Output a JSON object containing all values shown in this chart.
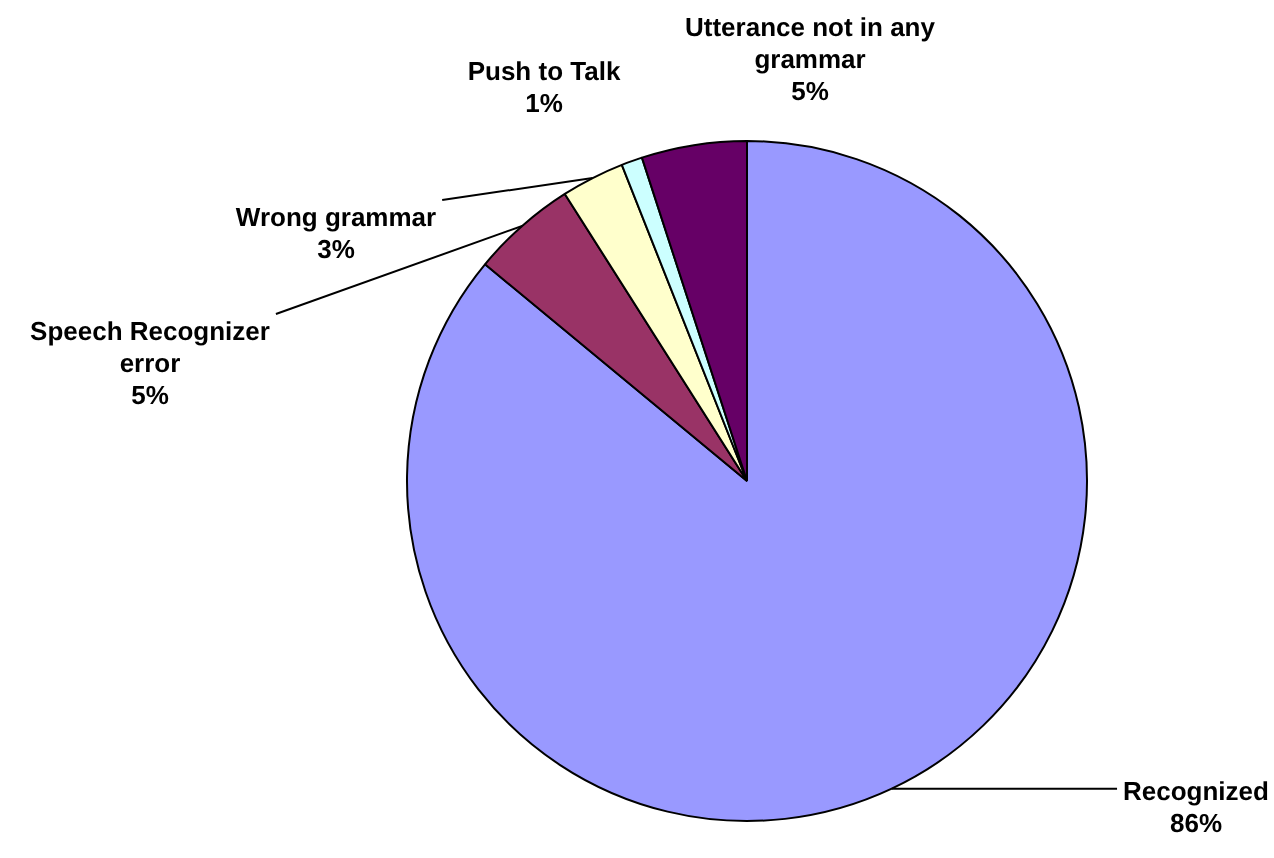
{
  "chart_data": {
    "type": "pie",
    "categories": [
      "Recognized",
      "Speech Recognizer error",
      "Wrong grammar",
      "Push to Talk",
      "Utterance not in any grammar"
    ],
    "values": [
      86,
      5,
      3,
      1,
      5
    ],
    "value_labels": [
      "86%",
      "5%",
      "3%",
      "1%",
      "5%"
    ],
    "colors": [
      "#9999ff",
      "#993366",
      "#ffffcc",
      "#ccffff",
      "#660066"
    ],
    "legend": false
  }
}
